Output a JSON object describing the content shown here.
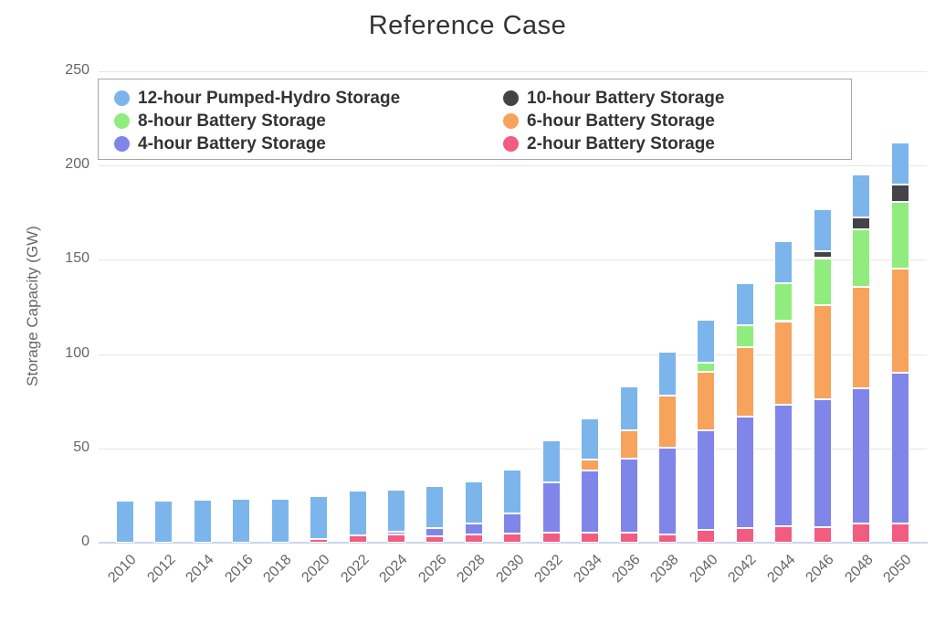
{
  "chart_data": {
    "type": "bar",
    "stacked": true,
    "title": "Reference Case",
    "xlabel": "",
    "ylabel": "Storage Capacity (GW)",
    "ylim": [
      0,
      250
    ],
    "yticks": [
      0,
      50,
      100,
      150,
      200,
      250
    ],
    "grid": true,
    "legend_position": "top-left-inside",
    "gridline_color": "#e6e6e6",
    "axis_line_color": "#ccd6eb",
    "axis_label_color": "#666666",
    "title_color": "#333333",
    "bar_border_color": "#ffffff",
    "categories": [
      "2010",
      "2012",
      "2014",
      "2016",
      "2018",
      "2020",
      "2022",
      "2024",
      "2026",
      "2028",
      "2030",
      "2032",
      "2034",
      "2036",
      "2038",
      "2040",
      "2042",
      "2044",
      "2046",
      "2048",
      "2050"
    ],
    "series": [
      {
        "name": "2-hour Battery Storage",
        "color": "#f15c80",
        "values": [
          0,
          0,
          0,
          0,
          0,
          1.9,
          4.0,
          4.3,
          3.5,
          4.2,
          5.0,
          5.2,
          5.5,
          5.2,
          4.4,
          6.8,
          7.6,
          8.7,
          8.1,
          10.3,
          10.0
        ]
      },
      {
        "name": "4-hour Battery Storage",
        "color": "#8085e9",
        "values": [
          0,
          0,
          0,
          0,
          0,
          0,
          0,
          1.6,
          4.1,
          5.8,
          10.5,
          26.6,
          32.8,
          39.5,
          46.0,
          52.8,
          59.3,
          64.3,
          67.8,
          71.6,
          79.9
        ]
      },
      {
        "name": "6-hour Battery Storage",
        "color": "#f7a35c",
        "values": [
          0,
          0,
          0,
          0,
          0,
          0,
          0,
          0,
          0,
          0,
          0,
          0,
          5.6,
          15.0,
          27.6,
          30.8,
          36.9,
          44.4,
          50.1,
          53.8,
          55.3
        ]
      },
      {
        "name": "8-hour Battery Storage",
        "color": "#90ed7d",
        "values": [
          0,
          0,
          0,
          0,
          0,
          0,
          0,
          0,
          0,
          0,
          0,
          0,
          0,
          0,
          0,
          4.9,
          11.6,
          20.2,
          24.8,
          30.6,
          35.5
        ]
      },
      {
        "name": "10-hour Battery Storage",
        "color": "#434348",
        "values": [
          0,
          0,
          0,
          0,
          0,
          0,
          0,
          0,
          0,
          0,
          0,
          0,
          0,
          0,
          0,
          0,
          0,
          0,
          3.6,
          6.3,
          9.2
        ]
      },
      {
        "name": "12-hour Pumped-Hydro Storage",
        "color": "#7cb5ec",
        "values": [
          22.3,
          22.5,
          22.8,
          23.3,
          23.4,
          22.7,
          23.5,
          22.0,
          22.3,
          22.3,
          23.3,
          22.6,
          22.1,
          23.3,
          23.3,
          22.8,
          22.0,
          22.1,
          22.4,
          22.8,
          22.3
        ]
      }
    ],
    "legend_order": [
      "12-hour Pumped-Hydro Storage",
      "10-hour Battery Storage",
      "8-hour Battery Storage",
      "6-hour Battery Storage",
      "4-hour Battery Storage",
      "2-hour Battery Storage"
    ]
  }
}
